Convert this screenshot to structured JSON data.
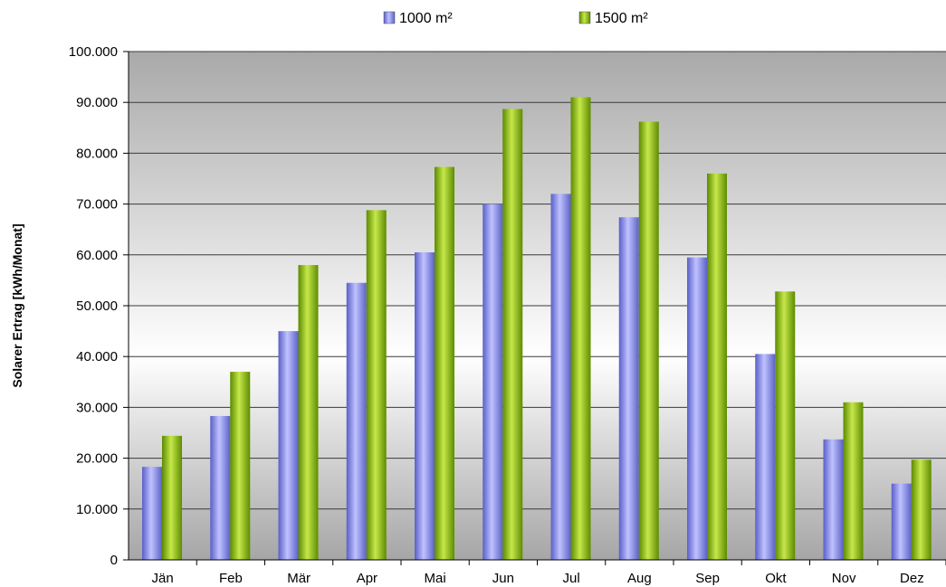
{
  "chart_data": {
    "type": "bar",
    "categories": [
      "Jän",
      "Feb",
      "Mär",
      "Apr",
      "Mai",
      "Jun",
      "Jul",
      "Aug",
      "Sep",
      "Okt",
      "Nov",
      "Dez"
    ],
    "series": [
      {
        "name": "1000 m²",
        "color": "#8a8ef0",
        "values": [
          18300,
          28300,
          45000,
          54500,
          60500,
          70000,
          72000,
          67400,
          59500,
          40500,
          23700,
          15000
        ]
      },
      {
        "name": "1500 m²",
        "color": "#8cba10",
        "values": [
          24400,
          37000,
          58000,
          68800,
          77300,
          88700,
          91000,
          86200,
          76000,
          52800,
          31000,
          19700
        ]
      }
    ],
    "ylabel": "Solarer Ertrag [kWh/Monat]",
    "xlabel": "",
    "title": "",
    "ylim": [
      0,
      100000
    ],
    "yticks": [
      0,
      10000,
      20000,
      30000,
      40000,
      50000,
      60000,
      70000,
      80000,
      90000,
      100000
    ],
    "ytick_labels": [
      "0",
      "10.000",
      "20.000",
      "30.000",
      "40.000",
      "50.000",
      "60.000",
      "70.000",
      "80.000",
      "90.000",
      "100.000"
    ],
    "legend_position": "top",
    "grid": true
  }
}
